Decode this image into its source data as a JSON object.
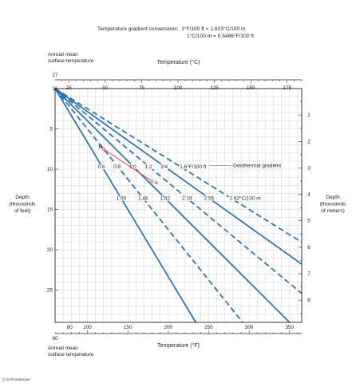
{
  "chart_data": {
    "type": "line",
    "conversion_label": "Temperature gradient conversions:",
    "conversion_lines": [
      "1°F/100 ft = 1.823°C/100 m",
      "1°C/100 m = 0.5486°F/100 ft"
    ],
    "top_axis": {
      "label": "Temperature (°C)",
      "range": [
        16,
        185
      ],
      "ticks": [
        {
          "v": 16,
          "label": "16"
        },
        {
          "v": 25,
          "label": "25"
        },
        {
          "v": 27,
          "label": "27"
        },
        {
          "v": 50,
          "label": "50"
        },
        {
          "v": 75,
          "label": "75"
        },
        {
          "v": 100,
          "label": "100"
        },
        {
          "v": 125,
          "label": "125"
        },
        {
          "v": 150,
          "label": "150"
        },
        {
          "v": 175,
          "label": "175"
        }
      ]
    },
    "bottom_axis": {
      "label": "Temperature (°F)",
      "range": [
        60,
        365
      ],
      "ticks": [
        {
          "v": 60,
          "label": "60"
        },
        {
          "v": 80,
          "label": "80"
        },
        {
          "v": 100,
          "label": "100"
        },
        {
          "v": 150,
          "label": "150"
        },
        {
          "v": 200,
          "label": "200"
        },
        {
          "v": 250,
          "label": "250"
        },
        {
          "v": 300,
          "label": "300"
        },
        {
          "v": 350,
          "label": "350"
        }
      ]
    },
    "left_axis": {
      "label": [
        "Depth",
        "(thousands",
        "of feet)"
      ],
      "range": [
        0,
        29
      ],
      "ticks": [
        5,
        10,
        15,
        20,
        25
      ]
    },
    "right_axis": {
      "label": [
        "Depth",
        "(thousands",
        "of meters)"
      ],
      "range": [
        0,
        8.84
      ],
      "ticks": [
        1,
        2,
        3,
        4,
        5,
        6,
        7,
        8
      ]
    },
    "surface_label_top": [
      "Annual mean",
      "surface temperature"
    ],
    "surface_label_bottom": [
      "Annual mean",
      "surface temperature"
    ],
    "surface_temp_f": 60,
    "gradient_label": "Geothermal gradient",
    "gradients_f_per_100ft": [
      {
        "g": 0.6,
        "label": "0.6",
        "style": "solid"
      },
      {
        "g": 0.8,
        "label": "0.8",
        "style": "dashed"
      },
      {
        "g": 1.0,
        "label": "1.0",
        "style": "solid"
      },
      {
        "g": 1.2,
        "label": "1.2",
        "style": "dashed"
      },
      {
        "g": 1.4,
        "label": "1.4",
        "style": "solid"
      },
      {
        "g": 1.6,
        "label": "1.6°F/100 ft",
        "style": "dashed"
      }
    ],
    "gradients_c_per_100m": [
      "1.09",
      "1.46",
      "1.82",
      "2.19",
      "2.55",
      "2.92°C/100 m"
    ],
    "example": {
      "color": "#e05555",
      "points": [
        {
          "label": "B",
          "temp_f": 120,
          "depth_kft": 7.5
        },
        {
          "label": "A",
          "temp_f": 180,
          "depth_kft": 11.5
        }
      ]
    },
    "line_color": "#2a6fb0",
    "grid": true
  },
  "copyright": "© Schlumberger"
}
